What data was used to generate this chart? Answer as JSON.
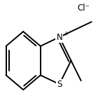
{
  "background_color": "#ffffff",
  "line_color": "#000000",
  "line_width": 1.4,
  "font_size": 8.5,
  "cl_label": "Cl⁻"
}
